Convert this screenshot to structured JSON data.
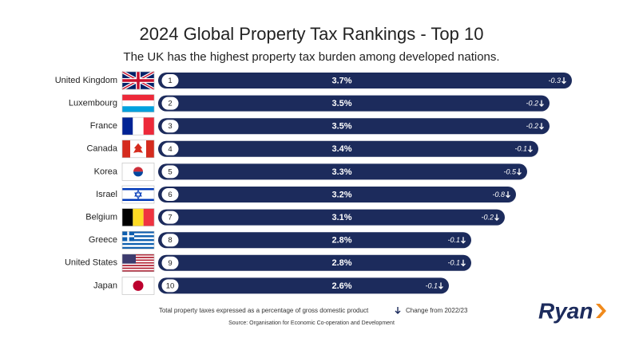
{
  "chart_data": {
    "type": "bar",
    "title": "2024 Global Property Tax Rankings - Top 10",
    "subtitle": "The UK has the highest property tax burden among developed nations.",
    "categories": [
      "United Kingdom",
      "Luxembourg",
      "France",
      "Canada",
      "Korea",
      "Israel",
      "Belgium",
      "Greece",
      "United States",
      "Japan"
    ],
    "ranks": [
      1,
      2,
      3,
      4,
      5,
      6,
      7,
      8,
      9,
      10
    ],
    "values": [
      3.7,
      3.5,
      3.5,
      3.4,
      3.3,
      3.2,
      3.1,
      2.8,
      2.8,
      2.6
    ],
    "value_labels": [
      "3.7%",
      "3.5%",
      "3.5%",
      "3.4%",
      "3.3%",
      "3.2%",
      "3.1%",
      "2.8%",
      "2.8%",
      "2.6%"
    ],
    "changes": [
      -0.3,
      -0.2,
      -0.2,
      -0.1,
      -0.5,
      -0.8,
      -0.2,
      -0.1,
      -0.1,
      -0.1
    ],
    "color": "#1c2b5c",
    "note": "Total property taxes expressed as a percentage of gross domestic product",
    "change_legend": "Change from 2022/23",
    "source": "Source: Organisation for Economic Co-operation and Development",
    "logo": "Ryan"
  }
}
